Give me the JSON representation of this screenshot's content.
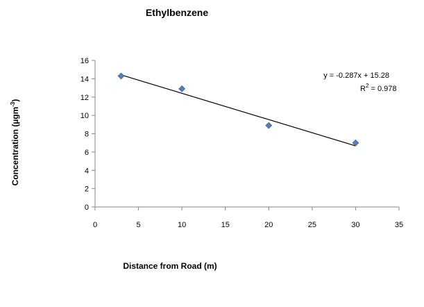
{
  "chart_data": {
    "type": "scatter",
    "title": "Ethylbenzene",
    "xlabel": "Distance from Road (m)",
    "ylabel_main": "Concentration (µgm",
    "ylabel_sup": "-3",
    "ylabel_tail": ")",
    "xlim": [
      0,
      35
    ],
    "ylim": [
      0,
      16
    ],
    "xticks": [
      0,
      5,
      10,
      15,
      20,
      25,
      30,
      35
    ],
    "yticks": [
      0,
      2,
      4,
      6,
      8,
      10,
      12,
      14,
      16
    ],
    "grid": false,
    "marker_color": "#4F81BD",
    "trendline_color": "#000000",
    "series": [
      {
        "points": [
          {
            "x": 3,
            "y": 14.3
          },
          {
            "x": 10,
            "y": 12.9
          },
          {
            "x": 20,
            "y": 8.9
          },
          {
            "x": 30,
            "y": 7.0
          }
        ]
      }
    ],
    "trendline": {
      "slope": -0.287,
      "intercept": 15.28,
      "x_range": [
        3,
        30
      ]
    },
    "annotations": {
      "equation": "y = -0.287x + 15.28",
      "r2_prefix": "R",
      "r2_sup": "2",
      "r2_value": " = 0.978"
    }
  }
}
